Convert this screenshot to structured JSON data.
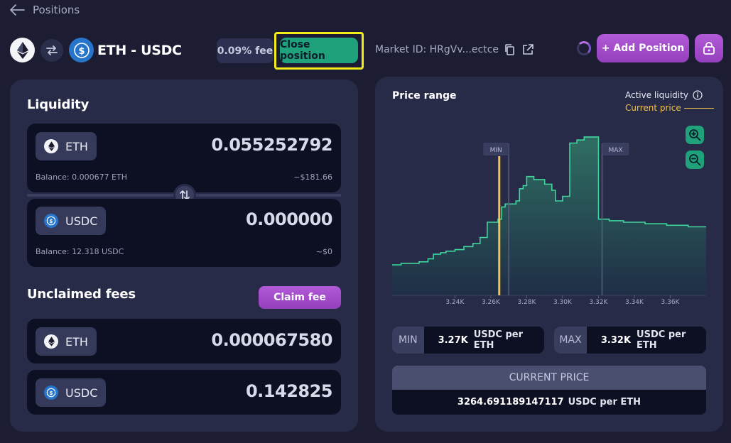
{
  "nav": {
    "back_label": "Positions"
  },
  "pair": {
    "name": "ETH - USDC",
    "fee": "0.09% fee"
  },
  "actions": {
    "close_position": "Close position",
    "add_position": "+ Add Position"
  },
  "market": {
    "label": "Market ID: HRgVv...ectce"
  },
  "liquidity": {
    "title": "Liquidity",
    "tokens": [
      {
        "symbol": "ETH",
        "amount": "0.055252792",
        "balance": "Balance: 0.000677 ETH",
        "usd": "~$181.66"
      },
      {
        "symbol": "USDC",
        "amount": "0.000000",
        "balance": "Balance: 12.318 USDC",
        "usd": "~$0"
      }
    ]
  },
  "fees": {
    "title": "Unclaimed fees",
    "claim_label": "Claim fee",
    "tokens": [
      {
        "symbol": "ETH",
        "amount": "0.000067580"
      },
      {
        "symbol": "USDC",
        "amount": "0.142825"
      }
    ]
  },
  "price_range": {
    "title": "Price range",
    "legend_active": "Active liquidity",
    "legend_current": "Current price",
    "min_tag": "MIN",
    "max_tag": "MAX",
    "min_label": "MIN",
    "min_value": "3.27K",
    "max_label": "MAX",
    "max_value": "3.32K",
    "unit": "USDC per ETH",
    "current_price_label": "CURRENT PRICE",
    "current_price_value": "3264.691189147117",
    "current_price_unit": "USDC per ETH"
  },
  "colors": {
    "accent_green": "#1fa27c",
    "accent_purple": "#a04ec9",
    "current_price": "#f2c14e",
    "highlight": "#f2ec1b"
  },
  "chart_data": {
    "type": "area",
    "x": [
      3205,
      3210,
      3215,
      3220,
      3225,
      3228,
      3232,
      3235,
      3240,
      3245,
      3250,
      3254,
      3258,
      3262,
      3264,
      3266,
      3268,
      3270,
      3272,
      3274,
      3276,
      3278,
      3280,
      3284,
      3290,
      3294,
      3296,
      3300,
      3304,
      3308,
      3312,
      3318,
      3320,
      3326,
      3334,
      3340,
      3346,
      3352,
      3358,
      3364,
      3370,
      3376
    ],
    "values": [
      0.2,
      0.21,
      0.21,
      0.22,
      0.24,
      0.27,
      0.28,
      0.29,
      0.3,
      0.32,
      0.34,
      0.38,
      0.48,
      0.48,
      0.5,
      0.58,
      0.6,
      0.6,
      0.6,
      0.62,
      0.7,
      0.72,
      0.78,
      0.76,
      0.73,
      0.69,
      0.62,
      0.65,
      1.0,
      1.02,
      1.04,
      1.04,
      0.5,
      0.49,
      0.48,
      0.48,
      0.47,
      0.47,
      0.46,
      0.46,
      0.45,
      0.45
    ],
    "xlim": [
      3205,
      3380
    ],
    "ylim": [
      0,
      1.1
    ],
    "x_ticks": [
      "3.24K",
      "3.26K",
      "3.28K",
      "3.30K",
      "3.32K",
      "3.34K",
      "3.36K"
    ],
    "x_tick_values": [
      3240,
      3260,
      3280,
      3300,
      3320,
      3340,
      3360
    ],
    "min_line": 3270,
    "max_line": 3322,
    "current_price": 3264.69,
    "grid": false
  }
}
